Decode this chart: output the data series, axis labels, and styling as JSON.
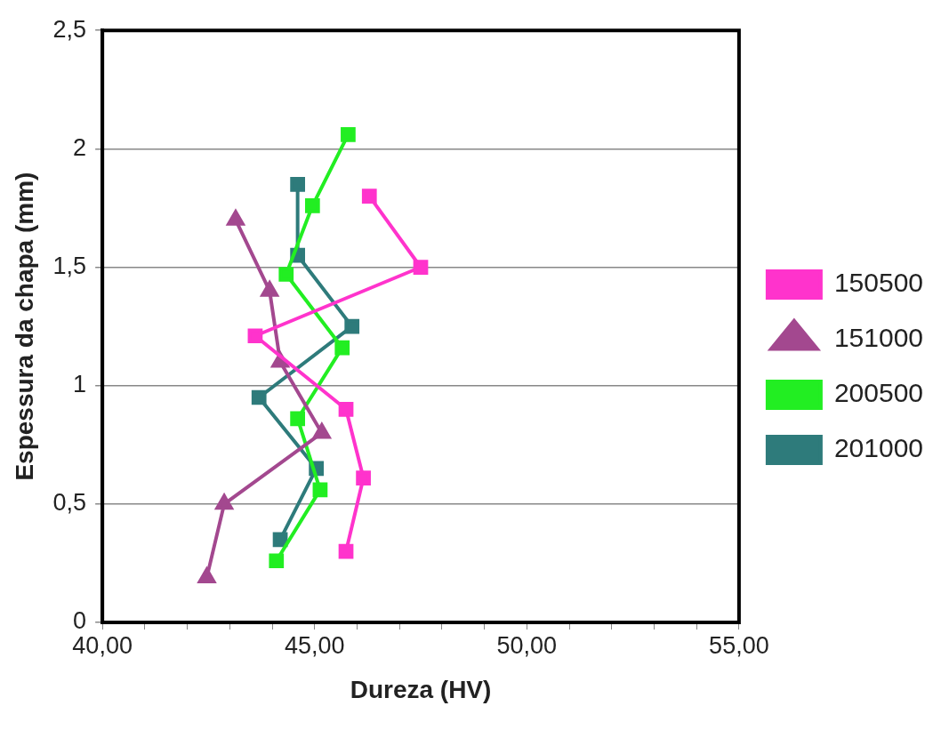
{
  "chart_data": {
    "type": "line",
    "xlabel": "Dureza (HV)",
    "ylabel": "Espessura da chapa (mm)",
    "xlim": [
      40,
      55
    ],
    "xticks": [
      {
        "value": 40,
        "label": "40,00"
      },
      {
        "value": 41,
        "label": null
      },
      {
        "value": 42,
        "label": null
      },
      {
        "value": 43,
        "label": null
      },
      {
        "value": 44,
        "label": null
      },
      {
        "value": 45,
        "label": "45,00"
      },
      {
        "value": 46,
        "label": null
      },
      {
        "value": 47,
        "label": null
      },
      {
        "value": 48,
        "label": null
      },
      {
        "value": 49,
        "label": null
      },
      {
        "value": 50,
        "label": "50,00"
      },
      {
        "value": 51,
        "label": null
      },
      {
        "value": 52,
        "label": null
      },
      {
        "value": 53,
        "label": null
      },
      {
        "value": 54,
        "label": null
      },
      {
        "value": 55,
        "label": "55,00"
      }
    ],
    "ylim": [
      0,
      2.5
    ],
    "yticks": [
      0,
      {
        "value": 0.5,
        "label": "0,5"
      },
      1,
      {
        "value": 1.5,
        "label": "1,5"
      },
      2,
      {
        "value": 2.5,
        "label": "2,5"
      }
    ],
    "grid": "y",
    "legend": "right",
    "line_style": "solid",
    "series": [
      {
        "name": "150500",
        "color": "#ff33cc",
        "marker": "square",
        "x": [
          45.74,
          46.15,
          45.74,
          43.6,
          47.5,
          46.29
        ],
        "values": [
          0.3,
          0.61,
          0.9,
          1.21,
          1.5,
          1.8
        ]
      },
      {
        "name": "151000",
        "color": "#a3488f",
        "marker": "triangle",
        "x": [
          42.46,
          42.87,
          45.17,
          44.19,
          43.94,
          43.14
        ],
        "values": [
          0.19,
          0.5,
          0.8,
          1.1,
          1.4,
          1.7
        ]
      },
      {
        "name": "200500",
        "color": "#22ee22",
        "marker": "square",
        "x": [
          44.1,
          45.13,
          44.6,
          45.65,
          44.33,
          44.95,
          45.79
        ],
        "values": [
          0.26,
          0.56,
          0.86,
          1.16,
          1.47,
          1.76,
          2.06
        ]
      },
      {
        "name": "201000",
        "color": "#2e7b7b",
        "marker": "square",
        "x": [
          44.19,
          45.04,
          43.69,
          45.88,
          44.6,
          44.6
        ],
        "values": [
          0.35,
          0.65,
          0.95,
          1.25,
          1.55,
          1.85
        ]
      }
    ]
  }
}
